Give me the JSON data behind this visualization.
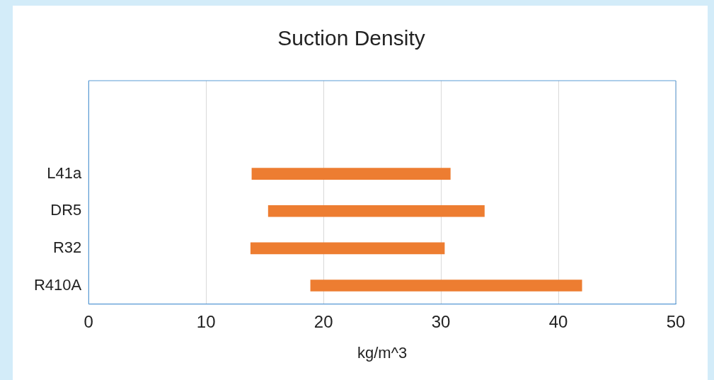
{
  "chart_data": {
    "type": "bar",
    "orientation": "horizontal",
    "title": "Suction Density",
    "xlabel": "kg/m^3",
    "categories": [
      null,
      null,
      "L41a",
      "DR5",
      "R32",
      "R410A"
    ],
    "base": [
      null,
      null,
      13.9,
      15.3,
      13.8,
      18.9
    ],
    "values": [
      null,
      null,
      16.9,
      18.4,
      16.5,
      23.1
    ],
    "color": "#ed7d31",
    "xlim": [
      0,
      50
    ],
    "xticks": [
      0,
      10,
      20,
      30,
      40,
      50
    ],
    "grid": "x",
    "legend": false
  }
}
